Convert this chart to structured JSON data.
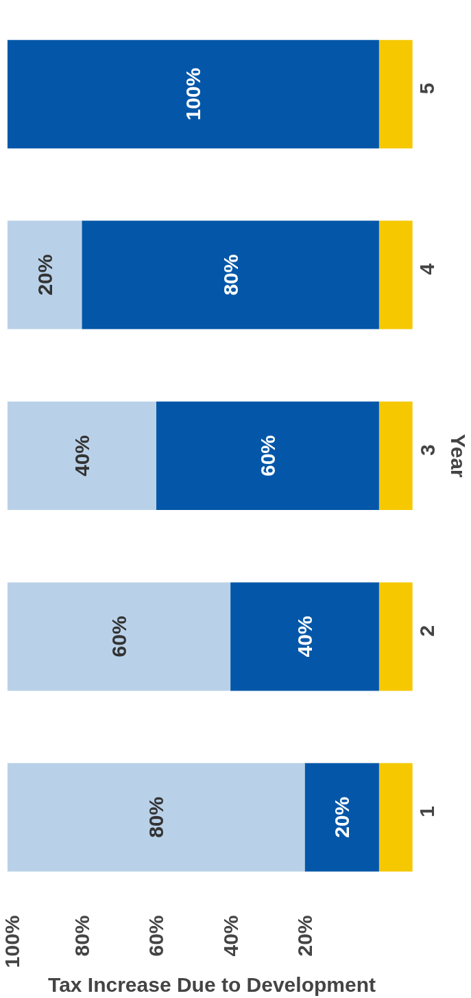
{
  "chart_data": {
    "type": "bar",
    "orientation": "horizontal",
    "stacked": true,
    "categories": [
      "5",
      "4",
      "3",
      "2",
      "1"
    ],
    "xlabel": "Tax Increase Due to Development",
    "ylabel": "Year",
    "xlim": [
      101,
      -11
    ],
    "xticks": [
      {
        "value": 20,
        "label": "20%"
      },
      {
        "value": 40,
        "label": "40%"
      },
      {
        "value": 60,
        "label": "60%"
      },
      {
        "value": 80,
        "label": "80%"
      },
      {
        "value": 100,
        "label": "100%"
      }
    ],
    "grid": false,
    "series": [
      {
        "color": "#f5c800",
        "values": [
          -9,
          -9,
          -9,
          -9,
          -9
        ]
      },
      {
        "color": "#0457a8",
        "values": [
          100,
          80,
          60,
          40,
          20
        ],
        "value_labels": [
          "100%",
          "80%",
          "60%",
          "40%",
          "20%"
        ]
      },
      {
        "color": "#b9d1e8",
        "values": [
          null,
          20,
          40,
          60,
          80
        ],
        "value_labels": [
          null,
          "20%",
          "40%",
          "60%",
          "80%"
        ]
      }
    ]
  }
}
